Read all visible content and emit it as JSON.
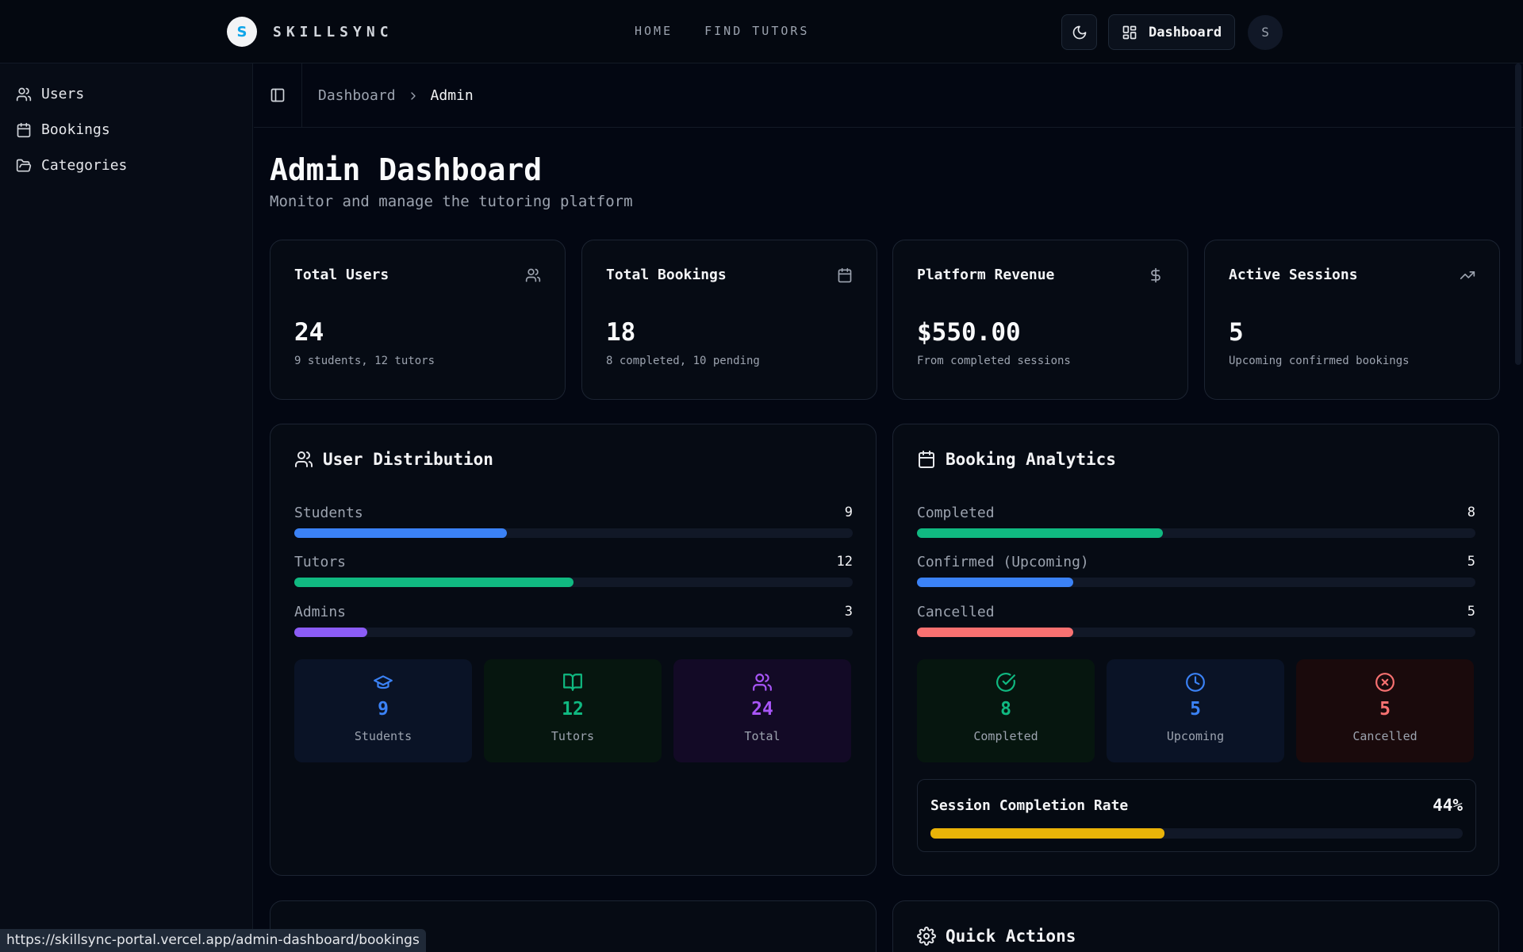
{
  "brand": {
    "logo_letter": "S",
    "name": "SKILLSYNC"
  },
  "nav": {
    "links": [
      "HOME",
      "FIND TUTORS"
    ],
    "dashboard_label": "Dashboard",
    "avatar_initial": "S"
  },
  "sidebar": {
    "items": [
      {
        "label": "Users",
        "icon": "users-icon"
      },
      {
        "label": "Bookings",
        "icon": "calendar-icon"
      },
      {
        "label": "Categories",
        "icon": "folder-open-icon"
      }
    ]
  },
  "breadcrumb": {
    "parent": "Dashboard",
    "current": "Admin"
  },
  "page": {
    "title": "Admin Dashboard",
    "subtitle": "Monitor and manage the tutoring platform"
  },
  "stats": [
    {
      "title": "Total Users",
      "value": "24",
      "sub": "9 students, 12 tutors",
      "icon": "users-icon"
    },
    {
      "title": "Total Bookings",
      "value": "18",
      "sub": "8 completed, 10 pending",
      "icon": "calendar-icon"
    },
    {
      "title": "Platform Revenue",
      "value": "$550.00",
      "sub": "From completed sessions",
      "icon": "dollar-icon"
    },
    {
      "title": "Active Sessions",
      "value": "5",
      "sub": "Upcoming confirmed bookings",
      "icon": "trending-up-icon"
    }
  ],
  "user_distribution": {
    "title": "User Distribution",
    "bars": [
      {
        "label": "Students",
        "value": "9",
        "fraction": 0.38,
        "color": "#3b82f6"
      },
      {
        "label": "Tutors",
        "value": "12",
        "fraction": 0.5,
        "color": "#10b981"
      },
      {
        "label": "Admins",
        "value": "3",
        "fraction": 0.13,
        "color": "#8b5cf6"
      }
    ],
    "tiles": [
      {
        "number": "9",
        "label": "Students",
        "icon": "graduation-cap-icon",
        "color": "#3b82f6",
        "bg": "#0a1326"
      },
      {
        "number": "12",
        "label": "Tutors",
        "icon": "book-open-icon",
        "color": "#10b981",
        "bg": "#06160f"
      },
      {
        "number": "24",
        "label": "Total",
        "icon": "users-icon",
        "color": "#a855f7",
        "bg": "#130a26"
      }
    ]
  },
  "booking_analytics": {
    "title": "Booking Analytics",
    "bars": [
      {
        "label": "Completed",
        "value": "8",
        "fraction": 0.44,
        "color": "#10b981"
      },
      {
        "label": "Confirmed (Upcoming)",
        "value": "5",
        "fraction": 0.28,
        "color": "#3b82f6"
      },
      {
        "label": "Cancelled",
        "value": "5",
        "fraction": 0.28,
        "color": "#f87171"
      }
    ],
    "tiles": [
      {
        "number": "8",
        "label": "Completed",
        "icon": "check-circle-icon",
        "color": "#10b981",
        "bg": "#06160f"
      },
      {
        "number": "5",
        "label": "Upcoming",
        "icon": "clock-icon",
        "color": "#3b82f6",
        "bg": "#0a1326"
      },
      {
        "number": "5",
        "label": "Cancelled",
        "icon": "x-circle-icon",
        "color": "#f87171",
        "bg": "#1a0a0c"
      }
    ],
    "completion": {
      "label": "Session Completion Rate",
      "value": "44%",
      "fraction": 0.44,
      "color": "#eab308"
    }
  },
  "quick_actions": {
    "title": "Quick Actions"
  },
  "status_url": "https://skillsync-portal.vercel.app/admin-dashboard/bookings"
}
